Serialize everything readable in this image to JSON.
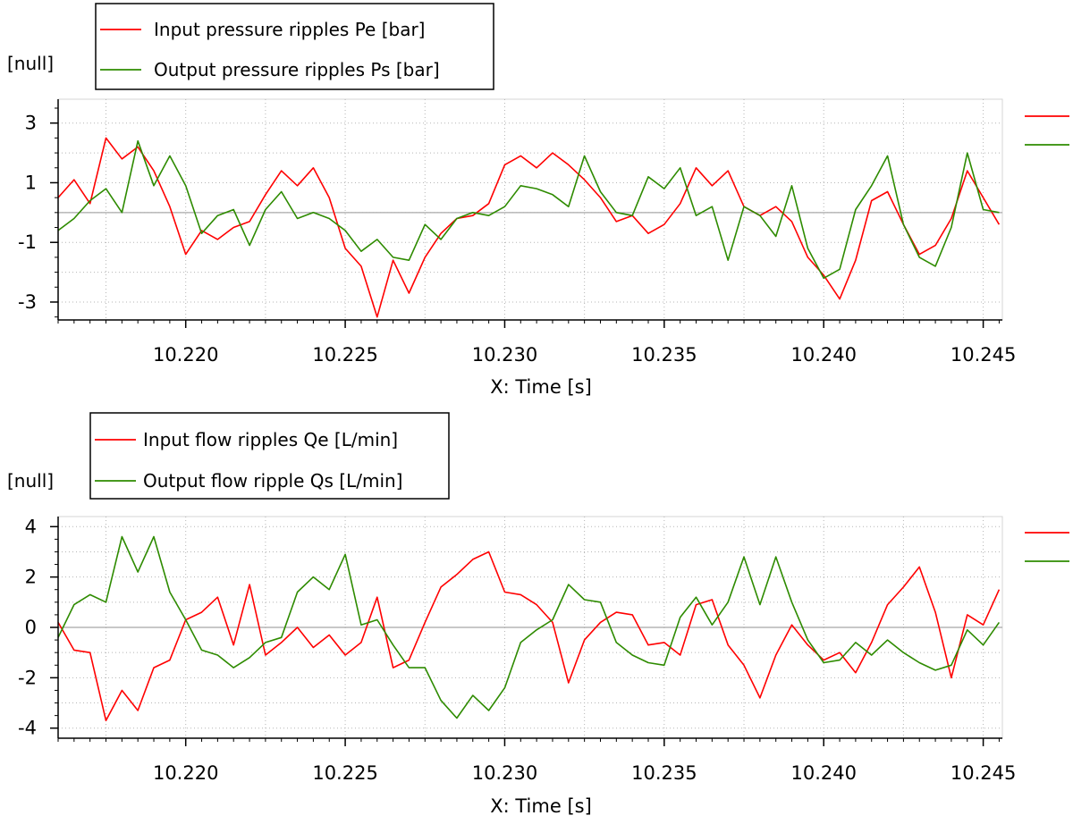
{
  "chart_data": [
    {
      "type": "line",
      "ylabel": "[null]",
      "xlabel": "X: Time [s]",
      "xlim": [
        10.216,
        10.2456
      ],
      "ylim": [
        -3.6,
        3.8
      ],
      "x_ticks": [
        10.22,
        10.225,
        10.23,
        10.235,
        10.24,
        10.245
      ],
      "x_tick_labels": [
        "10.220",
        "10.225",
        "10.230",
        "10.235",
        "10.240",
        "10.245"
      ],
      "y_ticks": [
        3,
        1,
        -1,
        -3
      ],
      "y_tick_labels": [
        "3",
        "1",
        "-1",
        "-3"
      ],
      "grid": true,
      "legend_position": "top-left, above plot",
      "series": [
        {
          "name": "Input pressure ripples Pe [bar]",
          "color": "#ff0000",
          "x": [
            10.216,
            10.2165,
            10.217,
            10.2175,
            10.218,
            10.2185,
            10.219,
            10.2195,
            10.22,
            10.2205,
            10.221,
            10.2215,
            10.222,
            10.2225,
            10.223,
            10.2235,
            10.224,
            10.2245,
            10.225,
            10.2255,
            10.226,
            10.2265,
            10.227,
            10.2275,
            10.228,
            10.2285,
            10.229,
            10.2295,
            10.23,
            10.2305,
            10.231,
            10.2315,
            10.232,
            10.2325,
            10.233,
            10.2335,
            10.234,
            10.2345,
            10.235,
            10.2355,
            10.236,
            10.2365,
            10.237,
            10.2375,
            10.238,
            10.2385,
            10.239,
            10.2395,
            10.24,
            10.2405,
            10.241,
            10.2415,
            10.242,
            10.2425,
            10.243,
            10.2435,
            10.244,
            10.2445,
            10.245,
            10.2455
          ],
          "y": [
            0.5,
            1.1,
            0.3,
            2.5,
            1.8,
            2.2,
            1.4,
            0.2,
            -1.4,
            -0.6,
            -0.9,
            -0.5,
            -0.3,
            0.6,
            1.4,
            0.9,
            1.5,
            0.5,
            -1.2,
            -1.8,
            -3.5,
            -1.6,
            -2.7,
            -1.5,
            -0.7,
            -0.2,
            -0.1,
            0.3,
            1.6,
            1.9,
            1.5,
            2.0,
            1.6,
            1.1,
            0.5,
            -0.3,
            -0.1,
            -0.7,
            -0.4,
            0.3,
            1.5,
            0.9,
            1.4,
            0.2,
            -0.1,
            0.2,
            -0.3,
            -1.5,
            -2.1,
            -2.9,
            -1.6,
            0.4,
            0.7,
            -0.4,
            -1.4,
            -1.1,
            -0.2,
            1.4,
            0.5,
            -0.4
          ]
        },
        {
          "name": "Output pressure ripples Ps [bar]",
          "color": "#2e8b00",
          "x": [
            10.216,
            10.2165,
            10.217,
            10.2175,
            10.218,
            10.2185,
            10.219,
            10.2195,
            10.22,
            10.2205,
            10.221,
            10.2215,
            10.222,
            10.2225,
            10.223,
            10.2235,
            10.224,
            10.2245,
            10.225,
            10.2255,
            10.226,
            10.2265,
            10.227,
            10.2275,
            10.228,
            10.2285,
            10.229,
            10.2295,
            10.23,
            10.2305,
            10.231,
            10.2315,
            10.232,
            10.2325,
            10.233,
            10.2335,
            10.234,
            10.2345,
            10.235,
            10.2355,
            10.236,
            10.2365,
            10.237,
            10.2375,
            10.238,
            10.2385,
            10.239,
            10.2395,
            10.24,
            10.2405,
            10.241,
            10.2415,
            10.242,
            10.2425,
            10.243,
            10.2435,
            10.244,
            10.2445,
            10.245,
            10.2455
          ],
          "y": [
            -0.6,
            -0.2,
            0.4,
            0.8,
            0.0,
            2.4,
            0.9,
            1.9,
            0.9,
            -0.7,
            -0.1,
            0.1,
            -1.1,
            0.1,
            0.7,
            -0.2,
            0.0,
            -0.2,
            -0.6,
            -1.3,
            -0.9,
            -1.5,
            -1.6,
            -0.4,
            -0.9,
            -0.2,
            -0.0,
            -0.1,
            0.2,
            0.9,
            0.8,
            0.6,
            0.2,
            1.9,
            0.7,
            0.0,
            -0.1,
            1.2,
            0.8,
            1.5,
            -0.1,
            0.2,
            -1.6,
            0.2,
            -0.1,
            -0.8,
            0.9,
            -1.2,
            -2.2,
            -1.9,
            0.1,
            0.9,
            1.9,
            -0.4,
            -1.5,
            -1.8,
            -0.5,
            2.0,
            0.1,
            0.0
          ]
        }
      ]
    },
    {
      "type": "line",
      "ylabel": "[null]",
      "xlabel": "X: Time [s]",
      "xlim": [
        10.216,
        10.2456
      ],
      "ylim": [
        -4.4,
        4.4
      ],
      "x_ticks": [
        10.22,
        10.225,
        10.23,
        10.235,
        10.24,
        10.245
      ],
      "x_tick_labels": [
        "10.220",
        "10.225",
        "10.230",
        "10.235",
        "10.240",
        "10.245"
      ],
      "y_ticks": [
        4,
        2,
        0,
        -2,
        -4
      ],
      "y_tick_labels": [
        "4",
        "2",
        "0",
        "-2",
        "-4"
      ],
      "grid": true,
      "legend_position": "top-left, above plot",
      "series": [
        {
          "name": "Input flow ripples Qe [L/min]",
          "color": "#ff0000",
          "x": [
            10.216,
            10.2165,
            10.217,
            10.2175,
            10.218,
            10.2185,
            10.219,
            10.2195,
            10.22,
            10.2205,
            10.221,
            10.2215,
            10.222,
            10.2225,
            10.223,
            10.2235,
            10.224,
            10.2245,
            10.225,
            10.2255,
            10.226,
            10.2265,
            10.227,
            10.2275,
            10.228,
            10.2285,
            10.229,
            10.2295,
            10.23,
            10.2305,
            10.231,
            10.2315,
            10.232,
            10.2325,
            10.233,
            10.2335,
            10.234,
            10.2345,
            10.235,
            10.2355,
            10.236,
            10.2365,
            10.237,
            10.2375,
            10.238,
            10.2385,
            10.239,
            10.2395,
            10.24,
            10.2405,
            10.241,
            10.2415,
            10.242,
            10.2425,
            10.243,
            10.2435,
            10.244,
            10.2445,
            10.245,
            10.2455
          ],
          "y": [
            0.2,
            -0.9,
            -1.0,
            -3.7,
            -2.5,
            -3.3,
            -1.6,
            -1.3,
            0.3,
            0.6,
            1.2,
            -0.7,
            1.7,
            -1.1,
            -0.6,
            0.0,
            -0.8,
            -0.3,
            -1.1,
            -0.6,
            1.2,
            -1.6,
            -1.3,
            0.2,
            1.6,
            2.1,
            2.7,
            3.0,
            1.4,
            1.3,
            0.9,
            0.2,
            -2.2,
            -0.5,
            0.2,
            0.6,
            0.5,
            -0.7,
            -0.6,
            -1.1,
            0.9,
            1.1,
            -0.7,
            -1.5,
            -2.8,
            -1.1,
            0.1,
            -0.7,
            -1.3,
            -1.0,
            -1.8,
            -0.6,
            0.9,
            1.6,
            2.4,
            0.6,
            -2.0,
            0.5,
            0.1,
            1.5
          ]
        },
        {
          "name": "Output flow ripple Qs [L/min]",
          "color": "#2e8b00",
          "x": [
            10.216,
            10.2165,
            10.217,
            10.2175,
            10.218,
            10.2185,
            10.219,
            10.2195,
            10.22,
            10.2205,
            10.221,
            10.2215,
            10.222,
            10.2225,
            10.223,
            10.2235,
            10.224,
            10.2245,
            10.225,
            10.2255,
            10.226,
            10.2265,
            10.227,
            10.2275,
            10.228,
            10.2285,
            10.229,
            10.2295,
            10.23,
            10.2305,
            10.231,
            10.2315,
            10.232,
            10.2325,
            10.233,
            10.2335,
            10.234,
            10.2345,
            10.235,
            10.2355,
            10.236,
            10.2365,
            10.237,
            10.2375,
            10.238,
            10.2385,
            10.239,
            10.2395,
            10.24,
            10.2405,
            10.241,
            10.2415,
            10.242,
            10.2425,
            10.243,
            10.2435,
            10.244,
            10.2445,
            10.245,
            10.2455
          ],
          "y": [
            -0.4,
            0.9,
            1.3,
            1.0,
            3.6,
            2.2,
            3.6,
            1.4,
            0.3,
            -0.9,
            -1.1,
            -1.6,
            -1.2,
            -0.6,
            -0.4,
            1.4,
            2.0,
            1.5,
            2.9,
            0.1,
            0.3,
            -0.7,
            -1.6,
            -1.6,
            -2.9,
            -3.6,
            -2.7,
            -3.3,
            -2.4,
            -0.6,
            -0.1,
            0.3,
            1.7,
            1.1,
            1.0,
            -0.6,
            -1.1,
            -1.4,
            -1.5,
            0.4,
            1.2,
            0.1,
            1.0,
            2.8,
            0.9,
            2.8,
            1.0,
            -0.5,
            -1.4,
            -1.3,
            -0.6,
            -1.1,
            -0.5,
            -1.0,
            -1.4,
            -1.7,
            -1.5,
            -0.1,
            -0.7,
            0.2
          ]
        }
      ]
    }
  ]
}
